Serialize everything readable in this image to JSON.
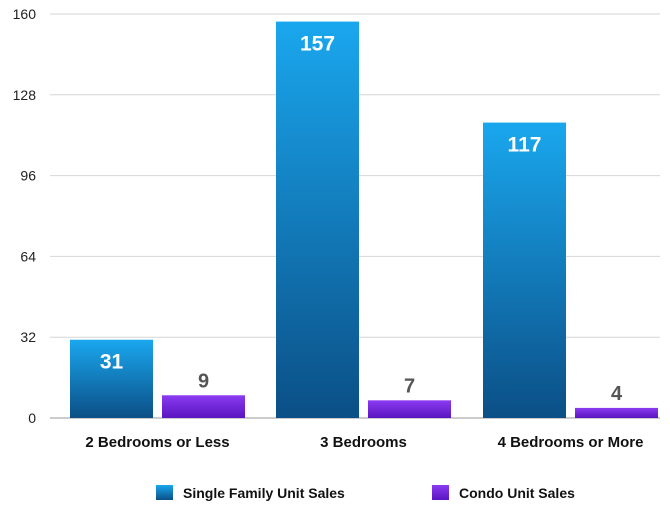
{
  "chart_data": {
    "type": "bar",
    "categories": [
      "2 Bedrooms or Less",
      "3 Bedrooms",
      "4 Bedrooms or More"
    ],
    "series": [
      {
        "name": "Single Family Unit Sales",
        "values": [
          31,
          157,
          117
        ],
        "color_top": "#1aa7ee",
        "color_bottom": "#0b4f86"
      },
      {
        "name": "Condo Unit Sales",
        "values": [
          9,
          7,
          4
        ],
        "color_top": "#8a3cf0",
        "color_bottom": "#5a14c0"
      }
    ],
    "y_ticks": [
      "0",
      "32",
      "64",
      "96",
      "128",
      "160"
    ],
    "ylim": [
      0,
      160
    ],
    "grid": true,
    "legend_position": "bottom",
    "data_labels": true
  }
}
